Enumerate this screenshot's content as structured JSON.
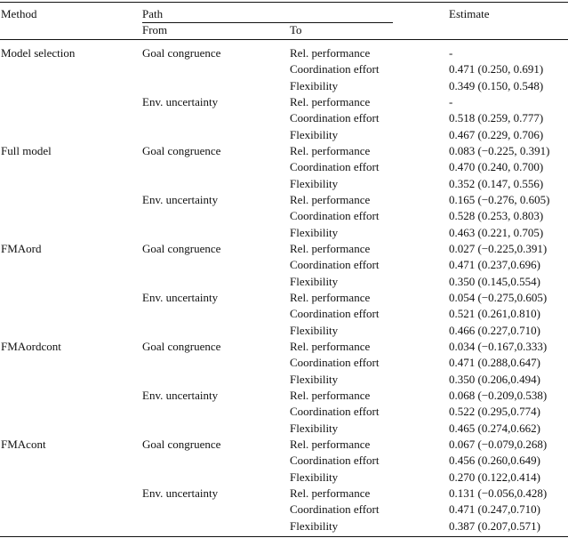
{
  "header": {
    "method": "Method",
    "path": "Path",
    "from": "From",
    "to": "To",
    "estimate": "Estimate"
  },
  "rows": [
    {
      "method": "Model selection",
      "from": "Goal congruence",
      "to": "Rel. performance",
      "estimate": "-"
    },
    {
      "method": "",
      "from": "",
      "to": "Coordination effort",
      "estimate": "0.471 (0.250, 0.691)"
    },
    {
      "method": "",
      "from": "",
      "to": "Flexibility",
      "estimate": "0.349 (0.150, 0.548)"
    },
    {
      "method": "",
      "from": "Env. uncertainty",
      "to": "Rel. performance",
      "estimate": "-"
    },
    {
      "method": "",
      "from": "",
      "to": "Coordination effort",
      "estimate": "0.518 (0.259, 0.777)"
    },
    {
      "method": "",
      "from": "",
      "to": "Flexibility",
      "estimate": "0.467 (0.229, 0.706)"
    },
    {
      "method": "Full model",
      "from": "Goal congruence",
      "to": "Rel. performance",
      "estimate": "0.083 (−0.225, 0.391)"
    },
    {
      "method": "",
      "from": "",
      "to": "Coordination effort",
      "estimate": "0.470 (0.240, 0.700)"
    },
    {
      "method": "",
      "from": "",
      "to": "Flexibility",
      "estimate": "0.352 (0.147, 0.556)"
    },
    {
      "method": "",
      "from": "Env. uncertainty",
      "to": "Rel. performance",
      "estimate": "0.165 (−0.276, 0.605)"
    },
    {
      "method": "",
      "from": "",
      "to": "Coordination effort",
      "estimate": "0.528 (0.253, 0.803)"
    },
    {
      "method": "",
      "from": "",
      "to": "Flexibility",
      "estimate": "0.463 (0.221, 0.705)"
    },
    {
      "method": "FMAord",
      "from": "Goal congruence",
      "to": "Rel. performance",
      "estimate": "0.027 (−0.225,0.391)"
    },
    {
      "method": "",
      "from": "",
      "to": "Coordination effort",
      "estimate": "0.471 (0.237,0.696)"
    },
    {
      "method": "",
      "from": "",
      "to": "Flexibility",
      "estimate": "0.350 (0.145,0.554)"
    },
    {
      "method": "",
      "from": "Env. uncertainty",
      "to": "Rel. performance",
      "estimate": "0.054 (−0.275,0.605)"
    },
    {
      "method": "",
      "from": "",
      "to": "Coordination effort",
      "estimate": "0.521 (0.261,0.810)"
    },
    {
      "method": "",
      "from": "",
      "to": "Flexibility",
      "estimate": "0.466 (0.227,0.710)"
    },
    {
      "method": "FMAordcont",
      "from": "Goal congruence",
      "to": "Rel. performance",
      "estimate": "0.034 (−0.167,0.333)"
    },
    {
      "method": "",
      "from": "",
      "to": "Coordination effort",
      "estimate": "0.471 (0.288,0.647)"
    },
    {
      "method": "",
      "from": "",
      "to": "Flexibility",
      "estimate": "0.350 (0.206,0.494)"
    },
    {
      "method": "",
      "from": "Env. uncertainty",
      "to": "Rel. performance",
      "estimate": "0.068 (−0.209,0.538)"
    },
    {
      "method": "",
      "from": "",
      "to": "Coordination effort",
      "estimate": "0.522 (0.295,0.774)"
    },
    {
      "method": "",
      "from": "",
      "to": "Flexibility",
      "estimate": "0.465 (0.274,0.662)"
    },
    {
      "method": "FMAcont",
      "from": "Goal congruence",
      "to": "Rel. performance",
      "estimate": "0.067 (−0.079,0.268)"
    },
    {
      "method": "",
      "from": "",
      "to": "Coordination effort",
      "estimate": "0.456 (0.260,0.649)"
    },
    {
      "method": "",
      "from": "",
      "to": "Flexibility",
      "estimate": "0.270 (0.122,0.414)"
    },
    {
      "method": "",
      "from": "Env. uncertainty",
      "to": "Rel. performance",
      "estimate": "0.131 (−0.056,0.428)"
    },
    {
      "method": "",
      "from": "",
      "to": "Coordination effort",
      "estimate": "0.471 (0.247,0.710)"
    },
    {
      "method": "",
      "from": "",
      "to": "Flexibility",
      "estimate": "0.387 (0.207,0.571)"
    }
  ]
}
